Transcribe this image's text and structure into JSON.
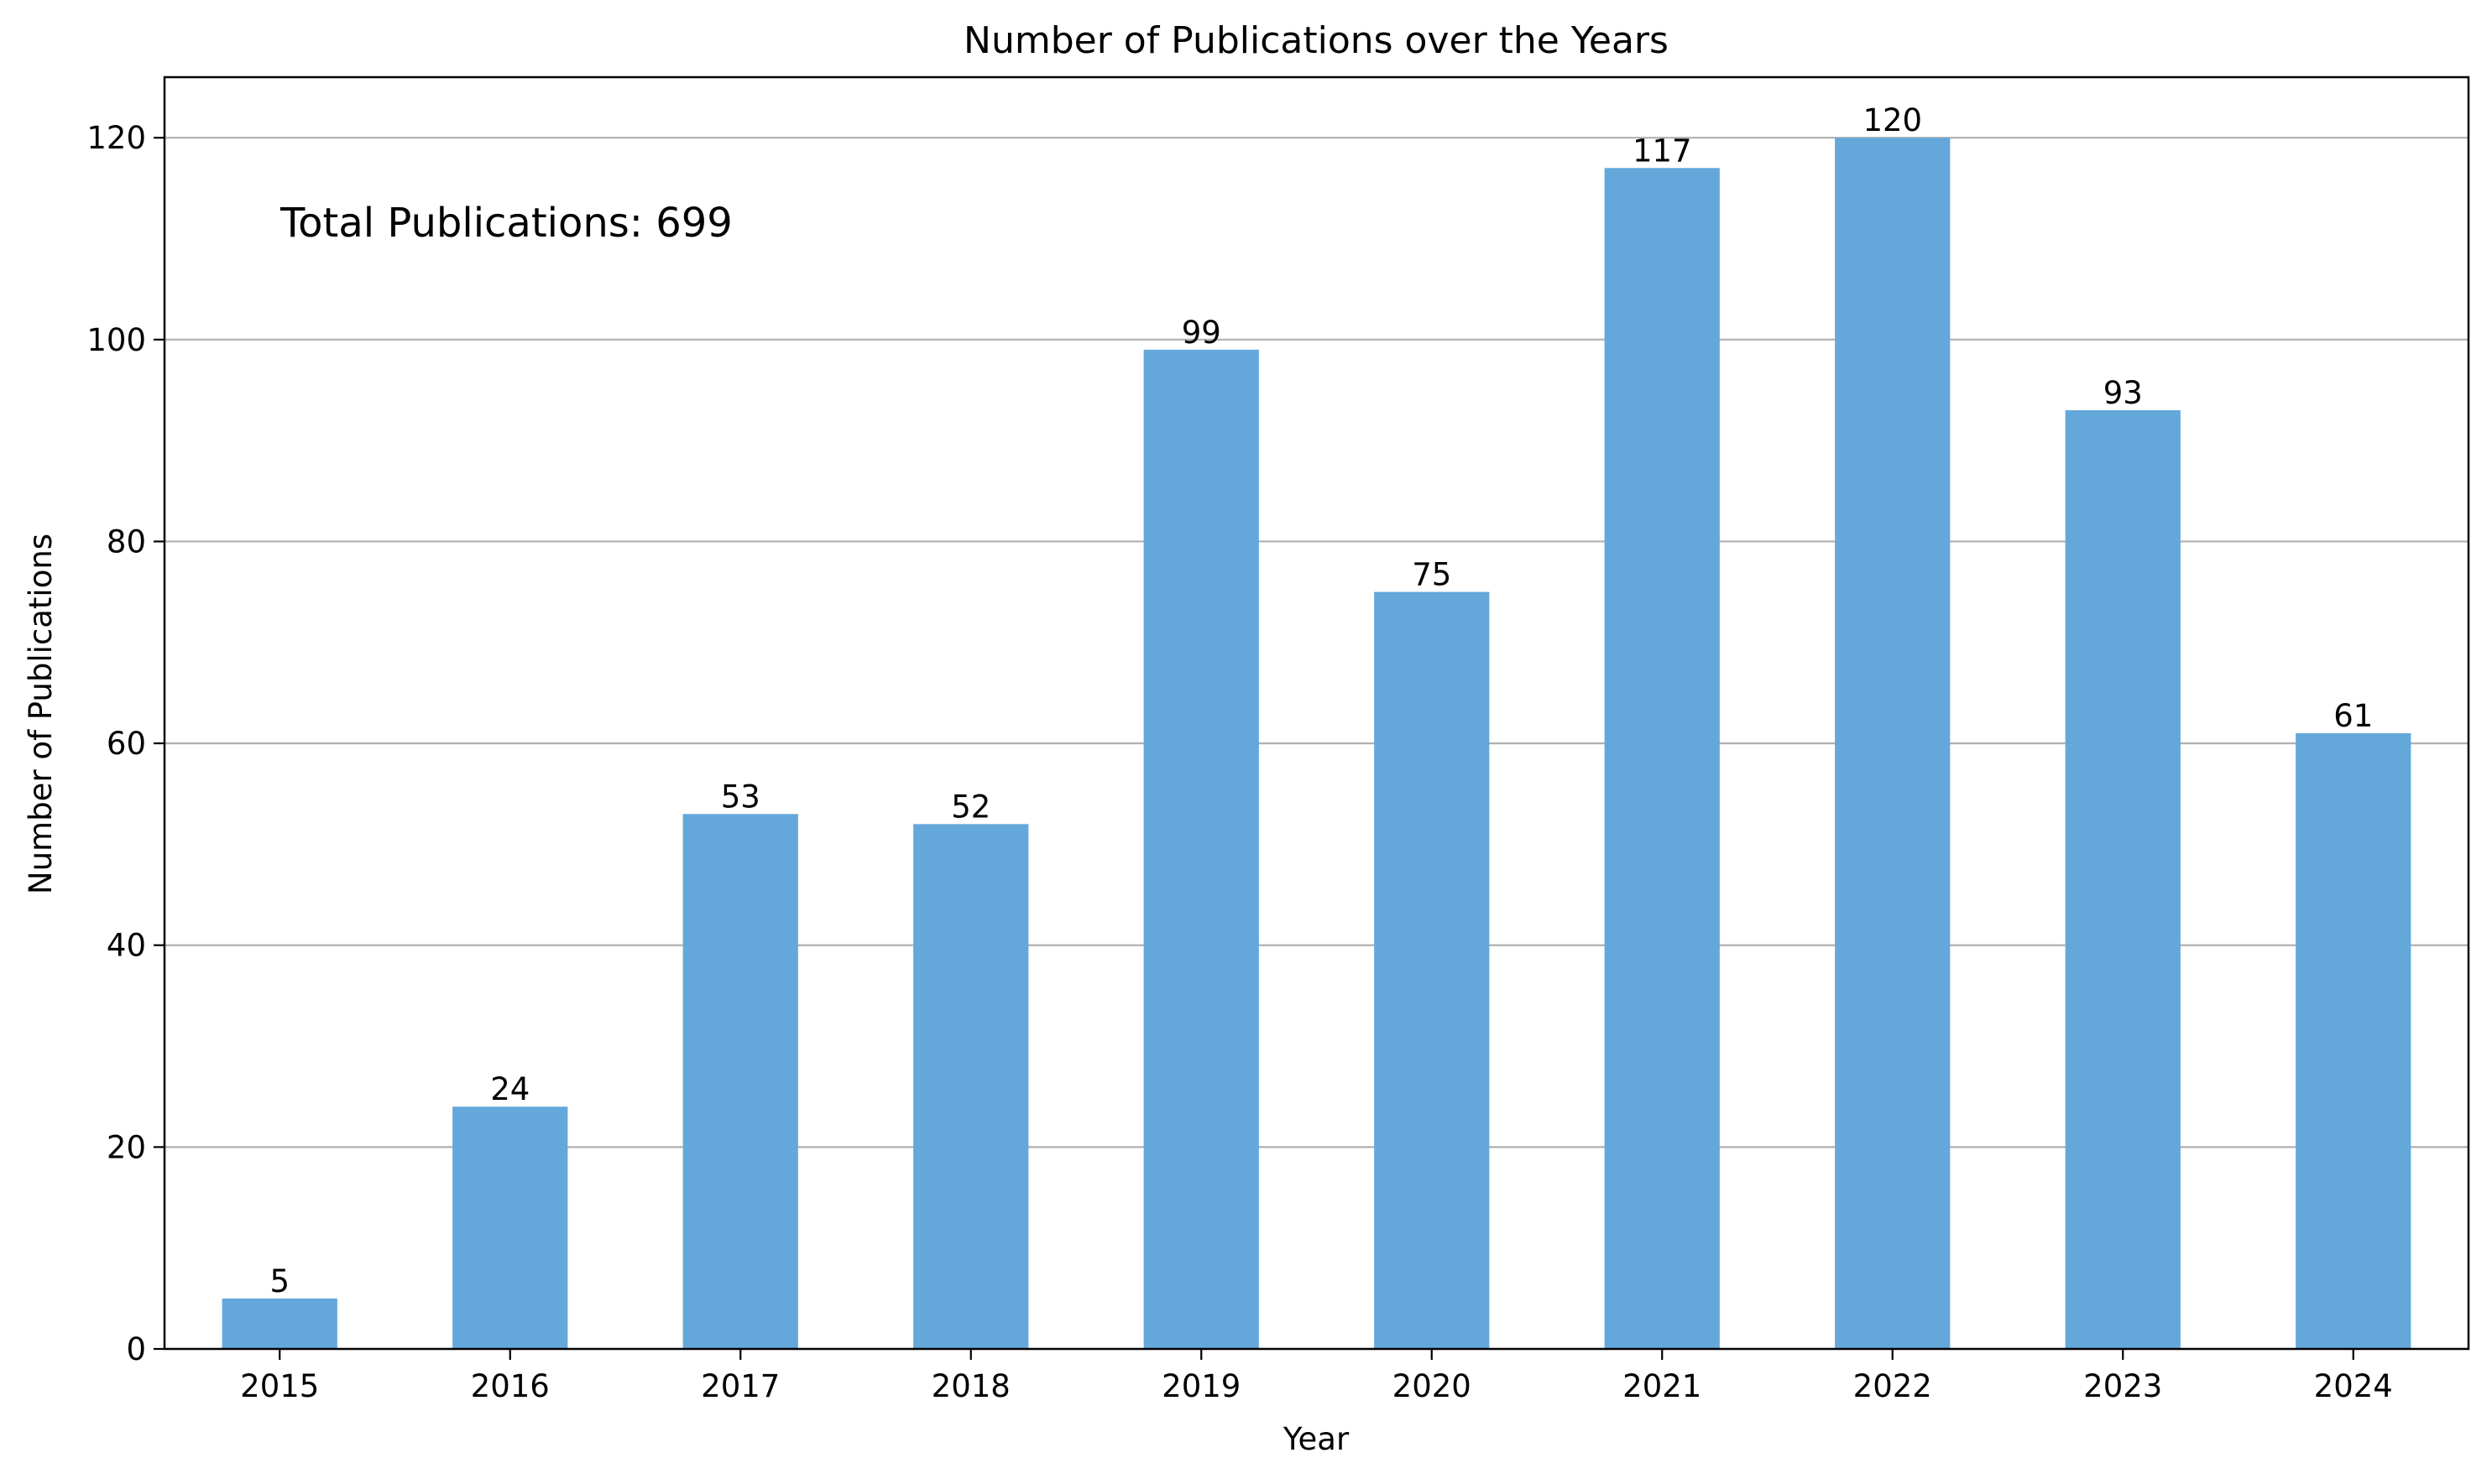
{
  "chart_data": {
    "type": "bar",
    "title": "Number of Publications over the Years",
    "xlabel": "Year",
    "ylabel": "Number of Publications",
    "categories": [
      "2015",
      "2016",
      "2017",
      "2018",
      "2019",
      "2020",
      "2021",
      "2022",
      "2023",
      "2024"
    ],
    "values": [
      5,
      24,
      53,
      52,
      99,
      75,
      117,
      120,
      93,
      61
    ],
    "ylim": [
      0,
      126
    ],
    "yticks": [
      0,
      20,
      40,
      60,
      80,
      100,
      120
    ],
    "grid": "horizontal",
    "bar_color": "#64a8db",
    "data_labels": true,
    "annotation": "Total Publications: 699"
  }
}
